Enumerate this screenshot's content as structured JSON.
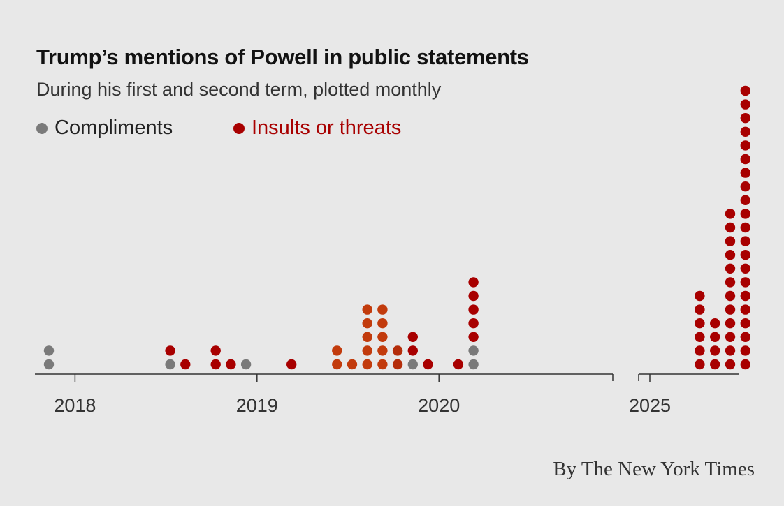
{
  "title": "Trump’s mentions of Powell in public statements",
  "subtitle": "During his first and second term, plotted monthly",
  "legend": [
    {
      "label": "Compliments",
      "color": "#7a7a7a"
    },
    {
      "label": "Insults or threats",
      "color": "#a80000"
    }
  ],
  "credit": "By The New York Times",
  "chart_data": {
    "type": "scatter",
    "subtype": "dot-stack by month",
    "series": [
      {
        "name": "Compliments",
        "color": "#7a7a7a"
      },
      {
        "name": "Insults or threats",
        "color": "#a80000"
      }
    ],
    "x_ticks": [
      "2018",
      "2019",
      "2020",
      "2025"
    ],
    "panels": [
      {
        "start": "2017-11",
        "end": "2020-12",
        "ticks": [
          "2018",
          "2019",
          "2020"
        ]
      },
      {
        "start": "2025-01",
        "end": "2025-07",
        "ticks": [
          "2025"
        ]
      }
    ],
    "months": [
      {
        "month": "2017-11",
        "compliments": 2,
        "insults": 0
      },
      {
        "month": "2018-07",
        "compliments": 1,
        "insults": 1
      },
      {
        "month": "2018-08",
        "compliments": 0,
        "insults": 1
      },
      {
        "month": "2018-10",
        "compliments": 0,
        "insults": 2
      },
      {
        "month": "2018-11",
        "compliments": 0,
        "insults": 1
      },
      {
        "month": "2018-12",
        "compliments": 1,
        "insults": 0
      },
      {
        "month": "2019-03",
        "compliments": 0,
        "insults": 1
      },
      {
        "month": "2019-06",
        "compliments": 0,
        "insults": 2,
        "color": "#c23b0c"
      },
      {
        "month": "2019-07",
        "compliments": 0,
        "insults": 1,
        "color": "#c23b0c"
      },
      {
        "month": "2019-08",
        "compliments": 0,
        "insults": 5,
        "color": "#c23b0c"
      },
      {
        "month": "2019-09",
        "compliments": 0,
        "insults": 5,
        "color": "#c23b0c"
      },
      {
        "month": "2019-10",
        "compliments": 0,
        "insults": 2,
        "color": "#b42d0a"
      },
      {
        "month": "2019-11",
        "compliments": 1,
        "insults": 2
      },
      {
        "month": "2019-12",
        "compliments": 0,
        "insults": 1
      },
      {
        "month": "2020-02",
        "compliments": 0,
        "insults": 1
      },
      {
        "month": "2020-03",
        "compliments": 2,
        "insults": 5
      },
      {
        "month": "2025-04",
        "compliments": 0,
        "insults": 6
      },
      {
        "month": "2025-05",
        "compliments": 0,
        "insults": 4
      },
      {
        "month": "2025-06",
        "compliments": 0,
        "insults": 12
      },
      {
        "month": "2025-07",
        "compliments": 0,
        "insults": 21
      }
    ]
  }
}
